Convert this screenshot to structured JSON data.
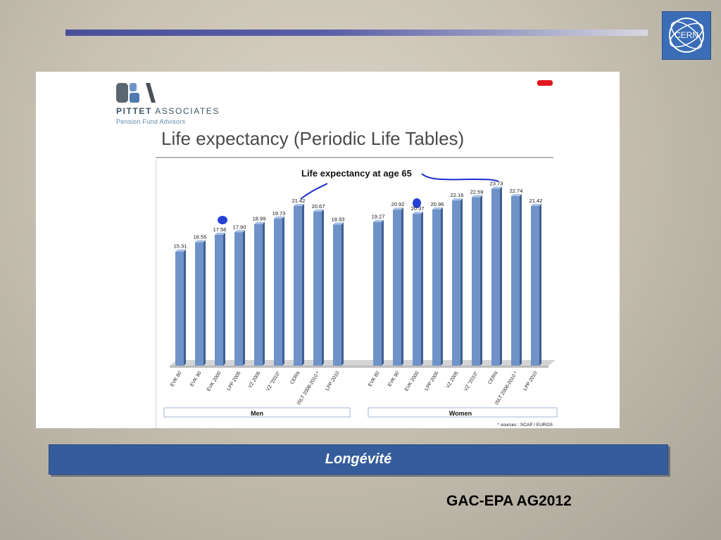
{
  "slide": {
    "subtitle": "Longévité",
    "footer": "GAC-EPA AG2012",
    "logo_text": "CERN"
  },
  "header": {
    "company_prefix": "PITTET",
    "company_suffix": "ASSOCIATES",
    "company_sub": "Pension Fund Advisors"
  },
  "colors": {
    "bar": "#6f93c9",
    "bar_dark": "#3f5f93",
    "annotation": "#1a2ecc",
    "band": "#355d9c"
  },
  "chart_data": {
    "type": "bar",
    "title": "Life expectancy (Periodic Life Tables)",
    "subtitle": "Life expectancy at age 65",
    "categories": [
      "EVK 80",
      "EVK 90",
      "EVK 2000",
      "LPP 2005",
      "VZ 2005",
      "VZ \"2010\"",
      "CERN",
      "ISLT 2008-2010 *",
      "LPP 2010"
    ],
    "series": [
      {
        "name": "Men",
        "values": [
          15.31,
          16.55,
          17.56,
          17.9,
          18.99,
          19.73,
          21.42,
          20.67,
          18.93
        ]
      },
      {
        "name": "Women",
        "values": [
          19.27,
          20.92,
          20.37,
          20.96,
          22.16,
          22.59,
          23.73,
          22.74,
          21.42
        ]
      }
    ],
    "ylim": [
      0,
      25
    ],
    "grid": false,
    "footnote": "* sources : SCAP / EUROS"
  }
}
